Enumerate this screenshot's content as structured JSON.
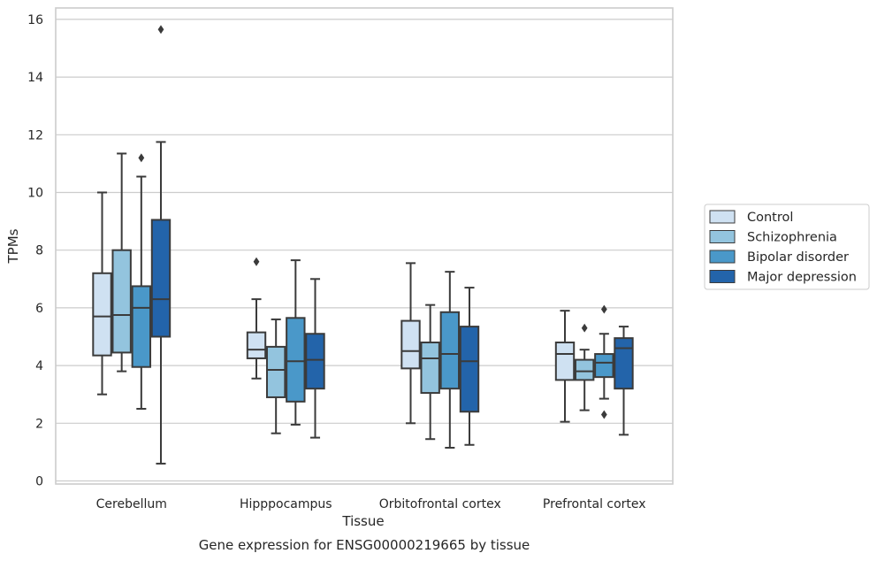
{
  "chart_data": {
    "type": "box",
    "xlabel": "Tissue",
    "ylabel": "TPMs",
    "caption": "Gene expression for ENSG00000219665 by tissue",
    "ylim": [
      -0.15,
      16.4
    ],
    "yticks": [
      0,
      2,
      4,
      6,
      8,
      10,
      12,
      14,
      16
    ],
    "grid": "horizontal",
    "legend_position": "right",
    "categories": [
      "Cerebellum",
      "Hipppocampus",
      "Orbitofrontal cortex",
      "Prefrontal cortex"
    ],
    "series": [
      {
        "name": "Control",
        "color": "#cfe1f2",
        "boxes": [
          {
            "whislo": 3.0,
            "q1": 4.35,
            "med": 5.7,
            "q3": 7.2,
            "whishi": 10.0,
            "fliers": []
          },
          {
            "whislo": 3.55,
            "q1": 4.25,
            "med": 4.55,
            "q3": 5.15,
            "whishi": 6.3,
            "fliers": [
              7.6
            ]
          },
          {
            "whislo": 2.0,
            "q1": 3.9,
            "med": 4.5,
            "q3": 5.55,
            "whishi": 7.55,
            "fliers": []
          },
          {
            "whislo": 2.05,
            "q1": 3.5,
            "med": 4.4,
            "q3": 4.8,
            "whishi": 5.9,
            "fliers": []
          }
        ]
      },
      {
        "name": "Schizophrenia",
        "color": "#93c4de",
        "boxes": [
          {
            "whislo": 3.8,
            "q1": 4.45,
            "med": 5.75,
            "q3": 8.0,
            "whishi": 11.35,
            "fliers": []
          },
          {
            "whislo": 1.65,
            "q1": 2.9,
            "med": 3.85,
            "q3": 4.65,
            "whishi": 5.6,
            "fliers": []
          },
          {
            "whislo": 1.45,
            "q1": 3.05,
            "med": 4.25,
            "q3": 4.8,
            "whishi": 6.1,
            "fliers": []
          },
          {
            "whislo": 2.45,
            "q1": 3.5,
            "med": 3.8,
            "q3": 4.2,
            "whishi": 4.55,
            "fliers": [
              5.3
            ]
          }
        ]
      },
      {
        "name": "Bipolar disorder",
        "color": "#4a98c9",
        "boxes": [
          {
            "whislo": 2.5,
            "q1": 3.95,
            "med": 6.0,
            "q3": 6.75,
            "whishi": 10.55,
            "fliers": [
              11.2
            ]
          },
          {
            "whislo": 1.95,
            "q1": 2.75,
            "med": 4.15,
            "q3": 5.65,
            "whishi": 7.65,
            "fliers": []
          },
          {
            "whislo": 1.15,
            "q1": 3.2,
            "med": 4.4,
            "q3": 5.85,
            "whishi": 7.25,
            "fliers": []
          },
          {
            "whislo": 2.85,
            "q1": 3.6,
            "med": 4.1,
            "q3": 4.4,
            "whishi": 5.1,
            "fliers": [
              5.95,
              2.3
            ]
          }
        ]
      },
      {
        "name": "Major depression",
        "color": "#2364aa",
        "boxes": [
          {
            "whislo": 0.6,
            "q1": 5.0,
            "med": 6.3,
            "q3": 9.05,
            "whishi": 11.75,
            "fliers": [
              15.65
            ]
          },
          {
            "whislo": 1.5,
            "q1": 3.2,
            "med": 4.2,
            "q3": 5.1,
            "whishi": 7.0,
            "fliers": []
          },
          {
            "whislo": 1.25,
            "q1": 2.4,
            "med": 4.15,
            "q3": 5.35,
            "whishi": 6.7,
            "fliers": []
          },
          {
            "whislo": 1.6,
            "q1": 3.2,
            "med": 4.6,
            "q3": 4.95,
            "whishi": 5.35,
            "fliers": []
          }
        ]
      }
    ]
  }
}
